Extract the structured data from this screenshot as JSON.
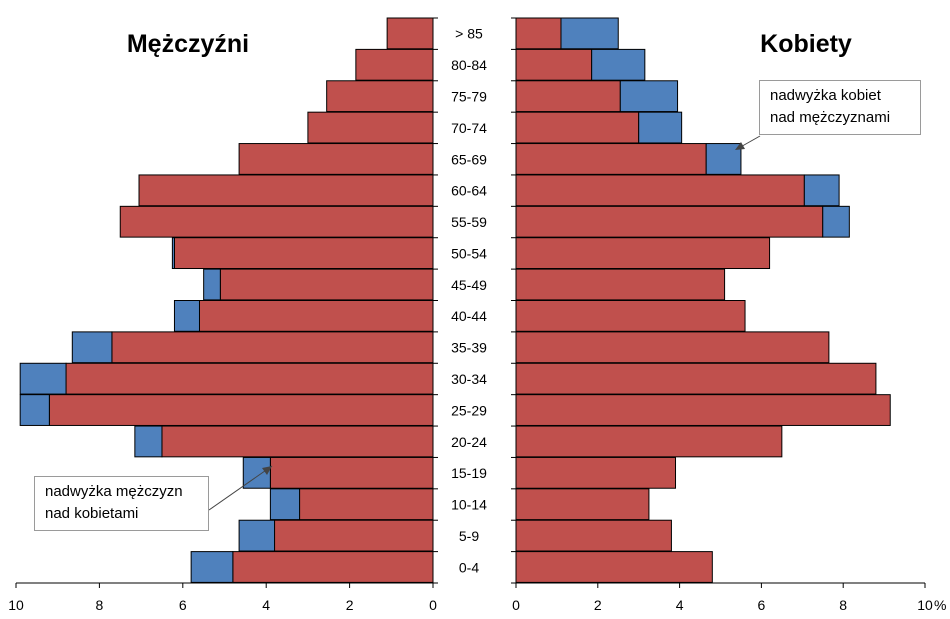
{
  "chart_data": {
    "type": "bar",
    "categories": [
      "0-4",
      "5-9",
      "10-14",
      "15-19",
      "20-24",
      "25-29",
      "30-34",
      "35-39",
      "40-44",
      "45-49",
      "50-54",
      "55-59",
      "60-64",
      "65-69",
      "70-74",
      "75-79",
      "80-84",
      "> 85"
    ],
    "colors": {
      "base": "#c0504d",
      "surplus": "#4f81bd",
      "axis": "#000000"
    },
    "left_panel": {
      "title": "Mężczyźni",
      "xlim": [
        10,
        0
      ],
      "ticks": [
        "10",
        "8",
        "6",
        "4",
        "2",
        "0"
      ],
      "tick_values": [
        10,
        8,
        6,
        4,
        2,
        0
      ],
      "series": [
        {
          "name": "Mężczyźni",
          "role": "base",
          "values": [
            4.8,
            3.8,
            3.2,
            3.9,
            6.5,
            9.2,
            8.8,
            7.7,
            5.6,
            5.1,
            6.2,
            7.5,
            7.05,
            4.65,
            3.0,
            2.55,
            1.85,
            1.1
          ]
        },
        {
          "role": "surplus",
          "values": [
            1.0,
            0.85,
            0.7,
            0.65,
            0.65,
            0.7,
            1.1,
            0.95,
            0.6,
            0.4,
            0.05,
            0,
            0,
            0,
            0,
            0,
            0,
            0
          ]
        }
      ],
      "annotation": {
        "lines": [
          "nadwyżka mężczyzn",
          "nad kobietami"
        ]
      }
    },
    "right_panel": {
      "title": "Kobiety",
      "xlim": [
        0,
        10
      ],
      "ticks": [
        "0",
        "2",
        "4",
        "6",
        "8",
        "10"
      ],
      "tick_values": [
        0,
        2,
        4,
        6,
        8,
        10
      ],
      "unit": "%",
      "series": [
        {
          "name": "Kobiety",
          "role": "base",
          "values": [
            4.8,
            3.8,
            3.25,
            3.9,
            6.5,
            9.15,
            8.8,
            7.65,
            5.6,
            5.1,
            6.2,
            7.5,
            7.05,
            4.65,
            3.0,
            2.55,
            1.85,
            1.1
          ]
        },
        {
          "role": "surplus",
          "values": [
            0,
            0,
            0,
            0,
            0,
            0,
            0,
            0,
            0,
            0,
            0,
            0.65,
            0.85,
            0.85,
            1.05,
            1.4,
            1.3,
            1.4
          ]
        }
      ],
      "annotation": {
        "lines": [
          "nadwyżka kobiet",
          "nad mężczyznami"
        ]
      }
    }
  }
}
